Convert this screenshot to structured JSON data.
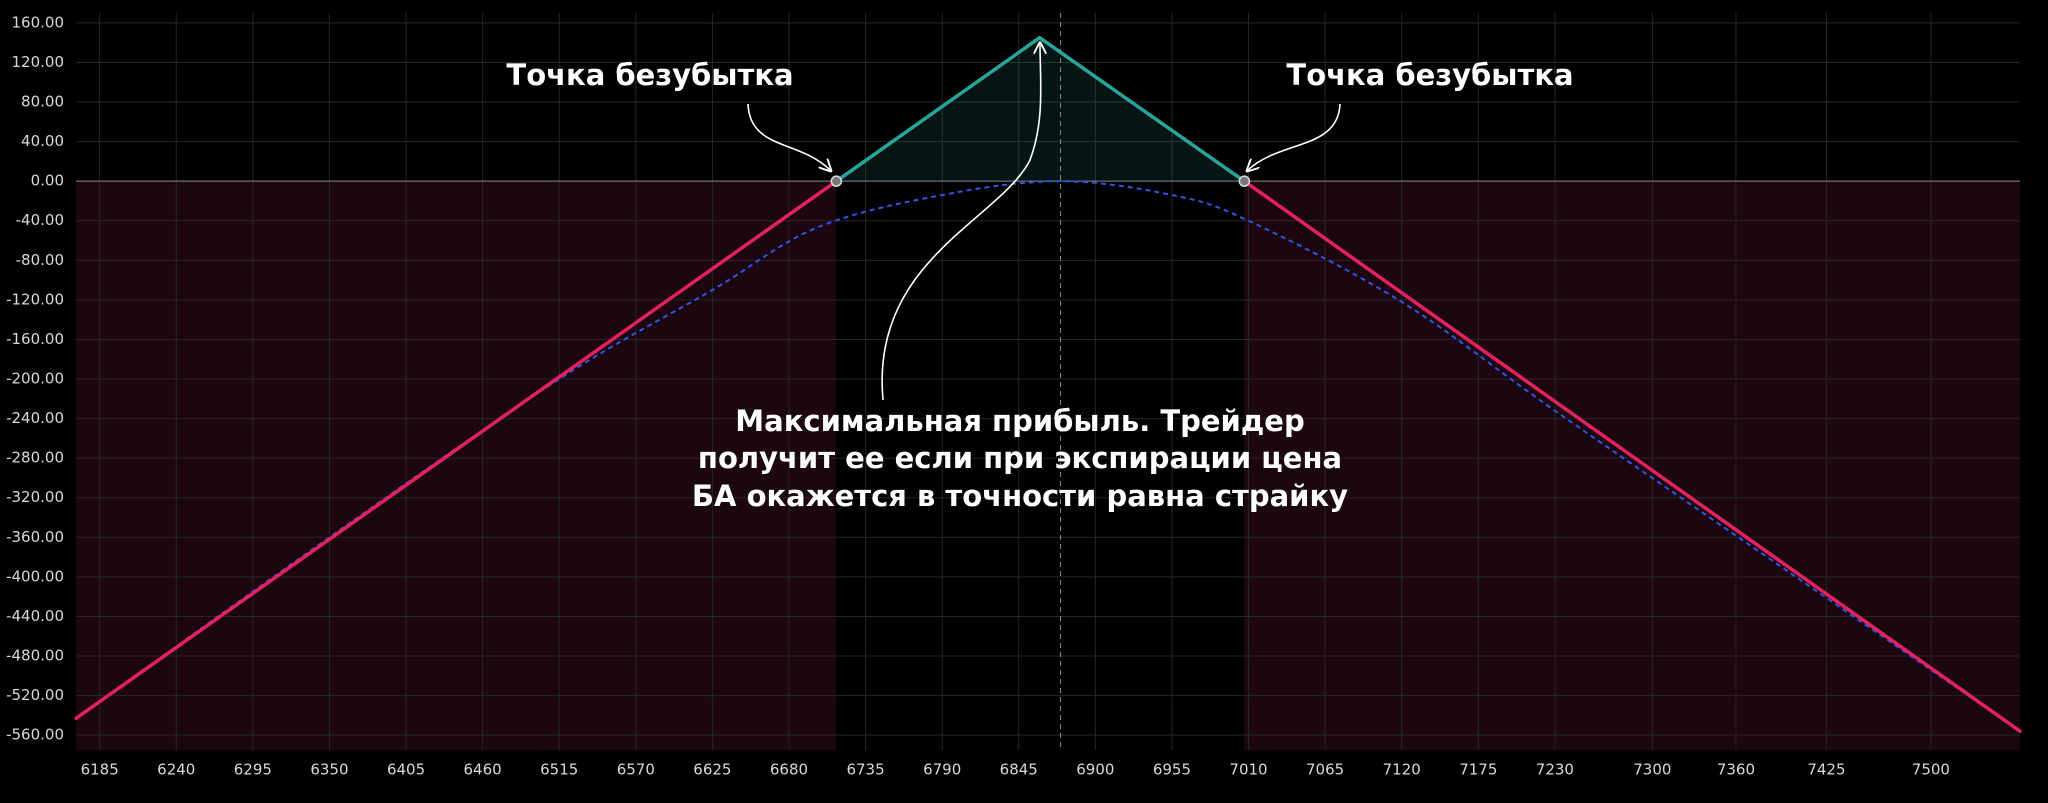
{
  "chart_data": {
    "type": "line",
    "xlim": [
      6168,
      7564
    ],
    "ylim": [
      -575,
      170
    ],
    "xticks": [
      6185,
      6240,
      6295,
      6350,
      6405,
      6460,
      6515,
      6570,
      6625,
      6680,
      6735,
      6790,
      6845,
      6900,
      6955,
      7010,
      7065,
      7120,
      7175,
      7230,
      7300,
      7360,
      7425,
      7500
    ],
    "yticks": [
      {
        "value": 160,
        "label": "160.00"
      },
      {
        "value": 120,
        "label": "120.00"
      },
      {
        "value": 80,
        "label": "80.00"
      },
      {
        "value": 40,
        "label": "40.00"
      },
      {
        "value": 0,
        "label": "0.00"
      },
      {
        "value": -40,
        "label": "-40.00"
      },
      {
        "value": -80,
        "label": "-80.00"
      },
      {
        "value": -120,
        "label": "-120.00"
      },
      {
        "value": -160,
        "label": "-160.00"
      },
      {
        "value": -200,
        "label": "-200.00"
      },
      {
        "value": -240,
        "label": "-240.00"
      },
      {
        "value": -280,
        "label": "-280.00"
      },
      {
        "value": -320,
        "label": "-320.00"
      },
      {
        "value": -360,
        "label": "-360.00"
      },
      {
        "value": -400,
        "label": "-400.00"
      },
      {
        "value": -440,
        "label": "-440.00"
      },
      {
        "value": -480,
        "label": "-480.00"
      },
      {
        "value": -520,
        "label": "-520.00"
      },
      {
        "value": -560,
        "label": "-560.00"
      }
    ],
    "grid": true,
    "series": [
      {
        "x": [
          6168,
          6714,
          6860,
          7007,
          7564
        ],
        "values": [
          -543,
          0,
          145,
          0,
          -556
        ],
        "color": "#e3215c",
        "positive_color": "#26a69a"
      },
      {
        "x": [
          6168,
          6350,
          6515,
          6625,
          6700,
          6790,
          6875,
          6955,
          7010,
          7120,
          7230,
          7400,
          7564
        ],
        "values": [
          -543,
          -360,
          -200,
          -110,
          -47,
          -14,
          0,
          -14,
          -40,
          -122,
          -232,
          -397,
          -556
        ],
        "color": "#2f55e6",
        "dashed": true
      }
    ],
    "vline_x": 6875,
    "annotations": [
      "Точка безубытка",
      "Точка безубытка"
    ],
    "note_lines": [
      "Максимальная прибыль. Трейдер",
      "получит ее если при экспирации цена",
      "БА окажется в точности равна страйку"
    ]
  }
}
